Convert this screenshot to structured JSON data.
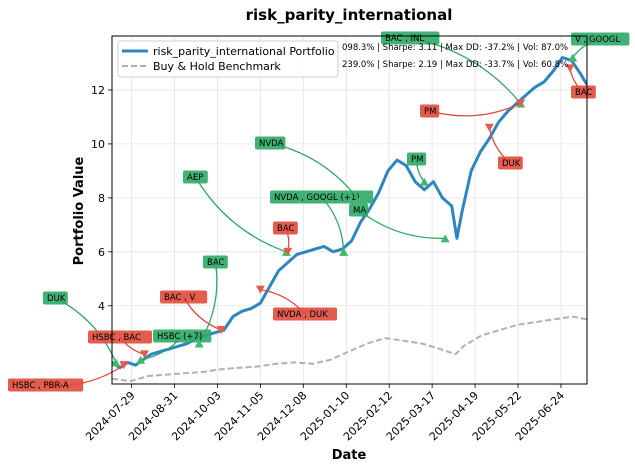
{
  "chart_data": {
    "type": "line",
    "title": "risk_parity_international",
    "xlabel": "Date",
    "ylabel": "Portfolio Value",
    "x_ticks": [
      "2024-07-29",
      "2024-08-31",
      "2024-10-03",
      "2024-11-05",
      "2024-12-08",
      "2025-01-10",
      "2025-02-12",
      "2025-03-17",
      "2025-04-19",
      "2025-05-22",
      "2025-06-24"
    ],
    "xlim": [
      "2024-07-14",
      "2025-07-14"
    ],
    "y_ticks": [
      4,
      6,
      8,
      10,
      12
    ],
    "ylim": [
      1.1,
      14.0
    ],
    "grid": true,
    "legend_position": "top-left",
    "series": [
      {
        "name": "risk_parity_international Portfolio",
        "color": "#2e86c1",
        "style": "solid",
        "stats": "098.3% | Sharpe: 3.11 | Max DD: -37.2% | Vol: 87.0%",
        "points": [
          [
            "2024-07-14",
            1.9
          ],
          [
            "2024-07-20",
            1.7
          ],
          [
            "2024-07-26",
            1.9
          ],
          [
            "2024-08-01",
            1.8
          ],
          [
            "2024-08-07",
            2.0
          ],
          [
            "2024-08-13",
            2.2
          ],
          [
            "2024-08-20",
            2.3
          ],
          [
            "2024-08-27",
            2.4
          ],
          [
            "2024-09-03",
            2.5
          ],
          [
            "2024-09-10",
            2.6
          ],
          [
            "2024-09-17",
            2.8
          ],
          [
            "2024-09-24",
            2.9
          ],
          [
            "2024-10-01",
            3.0
          ],
          [
            "2024-10-08",
            3.1
          ],
          [
            "2024-10-15",
            3.6
          ],
          [
            "2024-10-22",
            3.8
          ],
          [
            "2024-10-29",
            3.9
          ],
          [
            "2024-11-05",
            4.1
          ],
          [
            "2024-11-12",
            4.7
          ],
          [
            "2024-11-19",
            5.3
          ],
          [
            "2024-11-26",
            5.6
          ],
          [
            "2024-12-03",
            5.9
          ],
          [
            "2024-12-10",
            6.0
          ],
          [
            "2024-12-17",
            6.1
          ],
          [
            "2024-12-24",
            6.2
          ],
          [
            "2024-12-31",
            6.0
          ],
          [
            "2025-01-07",
            6.1
          ],
          [
            "2025-01-14",
            6.4
          ],
          [
            "2025-01-21",
            7.1
          ],
          [
            "2025-01-28",
            7.6
          ],
          [
            "2025-02-04",
            8.2
          ],
          [
            "2025-02-11",
            9.0
          ],
          [
            "2025-02-18",
            9.4
          ],
          [
            "2025-02-25",
            9.2
          ],
          [
            "2025-03-04",
            8.6
          ],
          [
            "2025-03-11",
            8.3
          ],
          [
            "2025-03-18",
            8.6
          ],
          [
            "2025-03-25",
            8.0
          ],
          [
            "2025-04-01",
            7.7
          ],
          [
            "2025-04-05",
            6.5
          ],
          [
            "2025-04-09",
            7.5
          ],
          [
            "2025-04-16",
            9.0
          ],
          [
            "2025-04-23",
            9.7
          ],
          [
            "2025-04-30",
            10.2
          ],
          [
            "2025-05-07",
            10.8
          ],
          [
            "2025-05-14",
            11.2
          ],
          [
            "2025-05-21",
            11.5
          ],
          [
            "2025-05-28",
            11.8
          ],
          [
            "2025-06-04",
            12.1
          ],
          [
            "2025-06-11",
            12.3
          ],
          [
            "2025-06-18",
            12.7
          ],
          [
            "2025-06-25",
            13.2
          ],
          [
            "2025-07-02",
            13.1
          ],
          [
            "2025-07-09",
            12.6
          ],
          [
            "2025-07-14",
            12.2
          ]
        ]
      },
      {
        "name": "Buy & Hold Benchmark",
        "color": "#a6b5b5",
        "style": "dashed",
        "stats": "239.0% | Sharpe: 2.19 | Max DD: -33.7% | Vol: 60.8%",
        "points": [
          [
            "2024-07-14",
            1.3
          ],
          [
            "2024-07-28",
            1.2
          ],
          [
            "2024-08-11",
            1.4
          ],
          [
            "2024-08-25",
            1.45
          ],
          [
            "2024-09-08",
            1.5
          ],
          [
            "2024-09-22",
            1.55
          ],
          [
            "2024-10-06",
            1.65
          ],
          [
            "2024-10-20",
            1.7
          ],
          [
            "2024-11-03",
            1.75
          ],
          [
            "2024-11-17",
            1.85
          ],
          [
            "2024-12-01",
            1.9
          ],
          [
            "2024-12-15",
            1.85
          ],
          [
            "2024-12-29",
            2.0
          ],
          [
            "2025-01-12",
            2.3
          ],
          [
            "2025-01-26",
            2.6
          ],
          [
            "2025-02-09",
            2.8
          ],
          [
            "2025-02-23",
            2.7
          ],
          [
            "2025-03-09",
            2.6
          ],
          [
            "2025-03-23",
            2.4
          ],
          [
            "2025-04-04",
            2.2
          ],
          [
            "2025-04-10",
            2.5
          ],
          [
            "2025-04-24",
            2.9
          ],
          [
            "2025-05-08",
            3.1
          ],
          [
            "2025-05-22",
            3.3
          ],
          [
            "2025-06-05",
            3.4
          ],
          [
            "2025-06-19",
            3.5
          ],
          [
            "2025-07-03",
            3.6
          ],
          [
            "2025-07-14",
            3.5
          ]
        ]
      }
    ],
    "annotations": [
      {
        "label": "HSBC , PBR-A",
        "kind": "sell",
        "marker_date": "2024-07-23",
        "marker_value": 1.8
      },
      {
        "label": "DUK",
        "kind": "buy",
        "marker_date": "2024-07-17",
        "marker_value": 1.9
      },
      {
        "label": "HSBC , BAC",
        "kind": "sell",
        "marker_date": "2024-08-08",
        "marker_value": 2.2
      },
      {
        "label": "HSBC (+7)",
        "kind": "buy",
        "marker_date": "2024-08-05",
        "marker_value": 2.0
      },
      {
        "label": "BAC , V",
        "kind": "sell",
        "marker_date": "2024-10-06",
        "marker_value": 3.1
      },
      {
        "label": "BAC",
        "kind": "buy",
        "marker_date": "2024-09-19",
        "marker_value": 2.6
      },
      {
        "label": "AEP",
        "kind": "buy",
        "marker_date": "2024-11-25",
        "marker_value": 6.0
      },
      {
        "label": "BAC",
        "kind": "sell",
        "marker_date": "2024-11-26",
        "marker_value": 6.0
      },
      {
        "label": "NVDA , DUK",
        "kind": "sell",
        "marker_date": "2024-11-05",
        "marker_value": 4.6
      },
      {
        "label": "NVDA , GOOGL (+1)",
        "kind": "buy",
        "marker_date": "2025-01-08",
        "marker_value": 6.0
      },
      {
        "label": "MA",
        "kind": "buy",
        "marker_date": "2025-03-27",
        "marker_value": 6.5
      },
      {
        "label": "NVDA",
        "kind": "buy",
        "marker_date": "2025-01-20",
        "marker_value": 7.9
      },
      {
        "label": "PM",
        "kind": "buy",
        "marker_date": "2025-03-11",
        "marker_value": 8.6
      },
      {
        "label": "BAC , INL",
        "kind": "buy",
        "marker_date": "2025-05-24",
        "marker_value": 11.5
      },
      {
        "label": "PM",
        "kind": "sell",
        "marker_date": "2025-05-24",
        "marker_value": 11.5
      },
      {
        "label": "DUK",
        "kind": "sell",
        "marker_date": "2025-04-30",
        "marker_value": 10.6
      },
      {
        "label": "V , GOOGL",
        "kind": "buy",
        "marker_date": "2025-07-03",
        "marker_value": 13.2
      },
      {
        "label": "BAC",
        "kind": "sell",
        "marker_date": "2025-07-01",
        "marker_value": 12.8
      }
    ]
  }
}
